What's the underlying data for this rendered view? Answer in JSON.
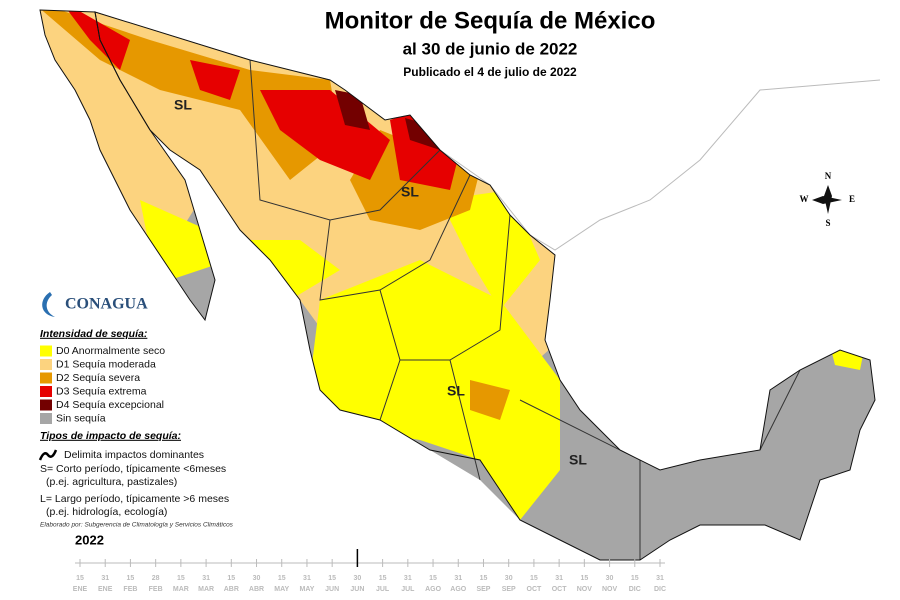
{
  "title": "Monitor de Sequía de México",
  "subtitle": "al 30 de junio de 2022",
  "published": "Publicado el 4 de julio de 2022",
  "map_labels": [
    "SL",
    "SL",
    "SL",
    "SL"
  ],
  "compass": {
    "n": "N",
    "s": "S",
    "e": "E",
    "w": "W"
  },
  "logo": "CONAGUA",
  "legend": {
    "title": "Intensidad de sequía:",
    "items": [
      {
        "label": "D0 Anormalmente seco",
        "color": "#ffff00"
      },
      {
        "label": "D1 Sequía moderada",
        "color": "#fcd37f"
      },
      {
        "label": "D2 Sequía severa",
        "color": "#e69800"
      },
      {
        "label": "D3 Sequía extrema",
        "color": "#e60000"
      },
      {
        "label": "D4 Sequía excepcional",
        "color": "#730000"
      },
      {
        "label": "Sin sequía",
        "color": "#a6a6a6"
      }
    ]
  },
  "impact": {
    "title": "Tipos de impacto de sequía:",
    "lines": [
      "Delimita impactos dominantes",
      "S= Corto período, típicamente <6meses",
      "(p.ej. agricultura, pastizales)",
      "L= Largo período, típicamente >6 meses",
      "(p.ej. hidrología, ecología)"
    ]
  },
  "credit": "Elaborado por: Subgerencia de Climatología y Servicios Climáticos",
  "timeline": {
    "year": "2022",
    "ticks": [
      {
        "day": "15",
        "month": "ENE"
      },
      {
        "day": "31",
        "month": "ENE"
      },
      {
        "day": "15",
        "month": "FEB"
      },
      {
        "day": "28",
        "month": "FEB"
      },
      {
        "day": "15",
        "month": "MAR"
      },
      {
        "day": "31",
        "month": "MAR"
      },
      {
        "day": "15",
        "month": "ABR"
      },
      {
        "day": "30",
        "month": "ABR"
      },
      {
        "day": "15",
        "month": "MAY"
      },
      {
        "day": "31",
        "month": "MAY"
      },
      {
        "day": "15",
        "month": "JUN"
      },
      {
        "day": "30",
        "month": "JUN"
      },
      {
        "day": "15",
        "month": "JUL"
      },
      {
        "day": "31",
        "month": "JUL"
      },
      {
        "day": "15",
        "month": "AGO"
      },
      {
        "day": "31",
        "month": "AGO"
      },
      {
        "day": "15",
        "month": "SEP"
      },
      {
        "day": "30",
        "month": "SEP"
      },
      {
        "day": "15",
        "month": "OCT"
      },
      {
        "day": "31",
        "month": "OCT"
      },
      {
        "day": "15",
        "month": "NOV"
      },
      {
        "day": "30",
        "month": "NOV"
      },
      {
        "day": "15",
        "month": "DIC"
      },
      {
        "day": "31",
        "month": "DIC"
      }
    ],
    "current": 11
  }
}
